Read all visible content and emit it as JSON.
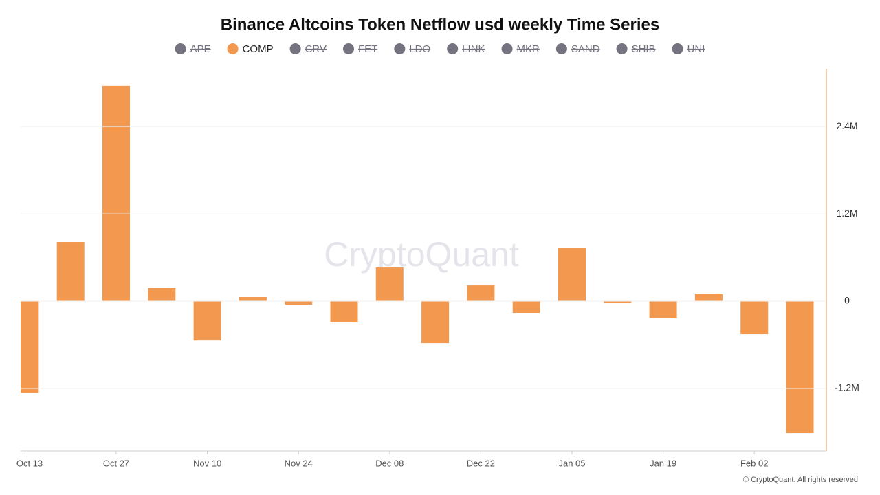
{
  "chart_data": {
    "type": "bar",
    "title": "Binance Altcoins Token Netflow usd weekly Time Series",
    "categories": [
      "Oct 13",
      null,
      "Oct 27",
      null,
      "Nov 10",
      null,
      "Nov 24",
      null,
      "Dec 08",
      null,
      "Dec 22",
      null,
      "Jan 05",
      null,
      "Jan 19",
      null,
      "Feb 02",
      null
    ],
    "series": [
      {
        "name": "APE",
        "visible": false,
        "color": "#74737f"
      },
      {
        "name": "COMP",
        "visible": true,
        "color": "#f2994f",
        "values": [
          -1260000,
          813000,
          2960000,
          180000,
          -540000,
          57000,
          -47000,
          -293000,
          463000,
          -577000,
          217000,
          -160000,
          737000,
          -20000,
          -236000,
          104000,
          -454000,
          -1815000
        ]
      },
      {
        "name": "CRV",
        "visible": false,
        "color": "#74737f"
      },
      {
        "name": "FET",
        "visible": false,
        "color": "#74737f"
      },
      {
        "name": "LDO",
        "visible": false,
        "color": "#74737f"
      },
      {
        "name": "LINK",
        "visible": false,
        "color": "#74737f"
      },
      {
        "name": "MKR",
        "visible": false,
        "color": "#74737f"
      },
      {
        "name": "SAND",
        "visible": false,
        "color": "#74737f"
      },
      {
        "name": "SHIB",
        "visible": false,
        "color": "#74737f"
      },
      {
        "name": "UNI",
        "visible": false,
        "color": "#74737f"
      }
    ],
    "ylim": [
      -2060000,
      3195000
    ],
    "yticks": [
      {
        "value": -1200000,
        "label": "-1.2M"
      },
      0,
      {
        "value": 1200000,
        "label": "1.2M"
      },
      {
        "value": 2400000,
        "label": "2.4M"
      }
    ],
    "y_axis_side": "right",
    "grid": true,
    "watermark": "CryptoQuant",
    "footer": "© CryptoQuant. All rights reserved"
  }
}
